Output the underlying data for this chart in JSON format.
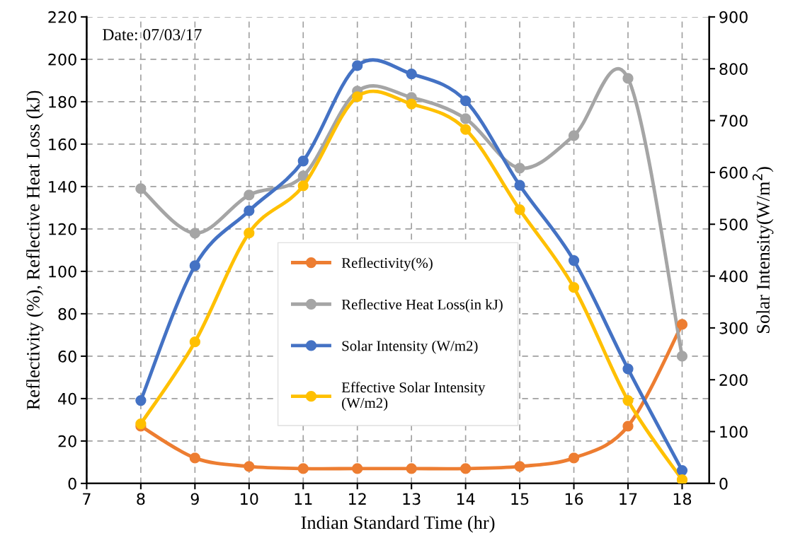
{
  "chart_data": {
    "type": "line",
    "xlabel": "Indian Standard Time (hr)",
    "ylabel": "Reflectivity (%), Reflective Heat Loss (kJ)",
    "y2label": "Solar Intensity(W/m$^{2}$)",
    "x": [
      8,
      9,
      10,
      11,
      12,
      13,
      14,
      15,
      16,
      17,
      18
    ],
    "xlim": [
      7,
      18.5
    ],
    "xticks": [
      7,
      8,
      9,
      10,
      11,
      12,
      13,
      14,
      15,
      16,
      17,
      18
    ],
    "ylim": [
      0,
      220
    ],
    "yticks": [
      0,
      20,
      40,
      60,
      80,
      100,
      120,
      140,
      160,
      180,
      200,
      220
    ],
    "y2lim": [
      0,
      900
    ],
    "y2ticks": [
      0,
      100,
      200,
      300,
      400,
      500,
      600,
      700,
      800,
      900
    ],
    "grid": true,
    "legend": "center",
    "marker": "circle",
    "line_style": "solid",
    "annotations": [
      "Date: 07/03/17"
    ],
    "series": [
      {
        "name": "Reflectivity(%)",
        "color": "#ed7d31",
        "values": [
          27,
          12,
          8,
          7,
          7,
          7,
          7,
          8,
          12,
          27,
          75
        ]
      },
      {
        "name": "Reflective Heat Loss(in kJ)",
        "color": "#a5a5a5",
        "values": [
          139,
          118,
          136,
          145,
          185,
          182,
          172,
          148.7,
          164,
          191,
          60
        ]
      },
      {
        "name": "Solar Intensity (W/m2)",
        "color": "#4472c4",
        "axis": "y2",
        "values": [
          160,
          420,
          526,
          622,
          806,
          790,
          738,
          575,
          430,
          221,
          25
        ]
      },
      {
        "name": "Effective Solar Intensity\n(W/m2)",
        "color": "#ffc000",
        "axis": "y2",
        "values": [
          115,
          273,
          483,
          574,
          746,
          732,
          683,
          528,
          378,
          160,
          7
        ]
      }
    ]
  }
}
